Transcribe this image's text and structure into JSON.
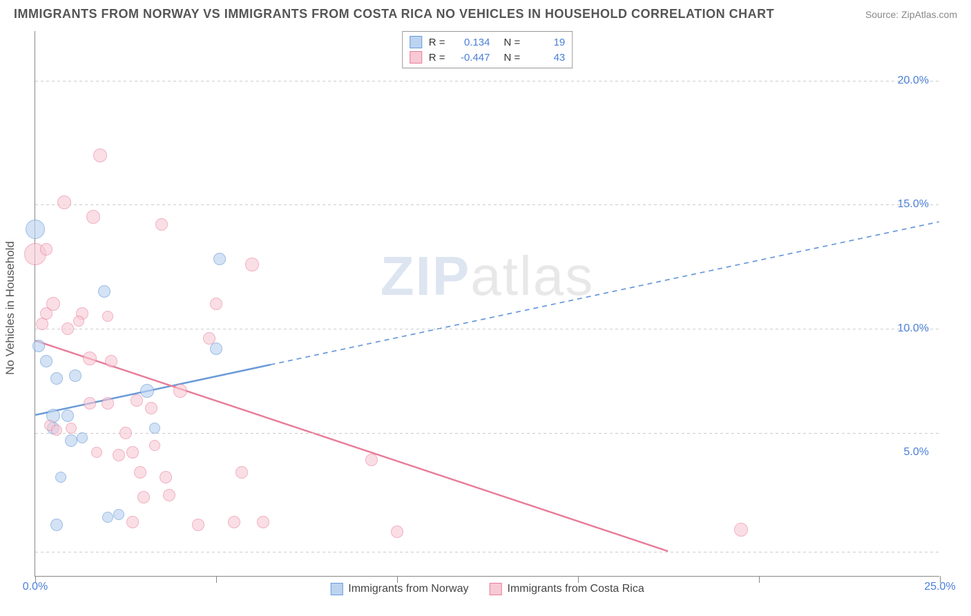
{
  "title": "IMMIGRANTS FROM NORWAY VS IMMIGRANTS FROM COSTA RICA NO VEHICLES IN HOUSEHOLD CORRELATION CHART",
  "source": "Source: ZipAtlas.com",
  "ylabel": "No Vehicles in Household",
  "watermark_zip": "ZIP",
  "watermark_atlas": "atlas",
  "chart": {
    "type": "scatter-correlation",
    "xlim": [
      0,
      25
    ],
    "ylim": [
      0,
      22
    ],
    "x_ticks": [
      0,
      5,
      10,
      15,
      20,
      25
    ],
    "x_tick_labels": [
      "0.0%",
      "",
      "",
      "",
      "",
      "25.0%"
    ],
    "y_ticks": [
      5,
      10,
      15,
      20
    ],
    "y_tick_labels": [
      "5.0%",
      "10.0%",
      "15.0%",
      "20.0%"
    ],
    "grid_y": [
      1,
      5.8,
      10,
      15,
      20
    ],
    "plot_bg": "#ffffff",
    "grid_color": "#cccccc",
    "axis_color": "#888888",
    "tick_label_color": "#4a7fd8",
    "series": [
      {
        "name": "Immigrants from Norway",
        "fill": "#bcd4f0",
        "stroke": "#6a9ad8",
        "fill_opacity": 0.65,
        "R": "0.134",
        "N": "19",
        "trend": {
          "x1": 0,
          "y1": 6.5,
          "x2": 25,
          "y2": 14.3,
          "solid_until_x": 6.5,
          "stroke_width": 2.5
        },
        "points": [
          {
            "x": 0.0,
            "y": 14.0,
            "r": 14
          },
          {
            "x": 0.1,
            "y": 9.3,
            "r": 9
          },
          {
            "x": 0.3,
            "y": 8.7,
            "r": 9
          },
          {
            "x": 0.5,
            "y": 6.5,
            "r": 10
          },
          {
            "x": 0.6,
            "y": 8.0,
            "r": 9
          },
          {
            "x": 0.9,
            "y": 6.5,
            "r": 9
          },
          {
            "x": 0.7,
            "y": 4.0,
            "r": 8
          },
          {
            "x": 1.0,
            "y": 5.5,
            "r": 9
          },
          {
            "x": 1.1,
            "y": 8.1,
            "r": 9
          },
          {
            "x": 1.9,
            "y": 11.5,
            "r": 9
          },
          {
            "x": 2.0,
            "y": 2.4,
            "r": 8
          },
          {
            "x": 2.3,
            "y": 2.5,
            "r": 8
          },
          {
            "x": 0.6,
            "y": 2.1,
            "r": 9
          },
          {
            "x": 3.1,
            "y": 7.5,
            "r": 10
          },
          {
            "x": 3.3,
            "y": 6.0,
            "r": 8
          },
          {
            "x": 5.0,
            "y": 9.2,
            "r": 9
          },
          {
            "x": 5.1,
            "y": 12.8,
            "r": 9
          },
          {
            "x": 0.5,
            "y": 6.0,
            "r": 9
          },
          {
            "x": 1.3,
            "y": 5.6,
            "r": 8
          }
        ]
      },
      {
        "name": "Immigrants from Costa Rica",
        "fill": "#f7c9d4",
        "stroke": "#e87d9a",
        "fill_opacity": 0.6,
        "R": "-0.447",
        "N": "43",
        "trend": {
          "x1": 0,
          "y1": 9.5,
          "x2": 17.5,
          "y2": 1.0,
          "solid_until_x": 17.5,
          "stroke_width": 2.5
        },
        "points": [
          {
            "x": 0.0,
            "y": 13.0,
            "r": 16
          },
          {
            "x": 0.3,
            "y": 10.6,
            "r": 9
          },
          {
            "x": 0.2,
            "y": 10.2,
            "r": 9
          },
          {
            "x": 0.5,
            "y": 11.0,
            "r": 10
          },
          {
            "x": 0.8,
            "y": 15.1,
            "r": 10
          },
          {
            "x": 0.3,
            "y": 13.2,
            "r": 9
          },
          {
            "x": 1.3,
            "y": 10.6,
            "r": 9
          },
          {
            "x": 1.5,
            "y": 8.8,
            "r": 10
          },
          {
            "x": 1.6,
            "y": 14.5,
            "r": 10
          },
          {
            "x": 1.8,
            "y": 17.0,
            "r": 10
          },
          {
            "x": 1.5,
            "y": 7.0,
            "r": 9
          },
          {
            "x": 2.1,
            "y": 8.7,
            "r": 9
          },
          {
            "x": 2.0,
            "y": 7.0,
            "r": 9
          },
          {
            "x": 2.3,
            "y": 4.9,
            "r": 9
          },
          {
            "x": 2.5,
            "y": 5.8,
            "r": 9
          },
          {
            "x": 2.7,
            "y": 5.0,
            "r": 9
          },
          {
            "x": 2.8,
            "y": 7.1,
            "r": 9
          },
          {
            "x": 2.9,
            "y": 4.2,
            "r": 9
          },
          {
            "x": 3.0,
            "y": 3.2,
            "r": 9
          },
          {
            "x": 2.7,
            "y": 2.2,
            "r": 9
          },
          {
            "x": 3.2,
            "y": 6.8,
            "r": 9
          },
          {
            "x": 3.5,
            "y": 14.2,
            "r": 9
          },
          {
            "x": 3.6,
            "y": 4.0,
            "r": 9
          },
          {
            "x": 3.7,
            "y": 3.3,
            "r": 9
          },
          {
            "x": 4.0,
            "y": 7.5,
            "r": 10
          },
          {
            "x": 4.5,
            "y": 2.1,
            "r": 9
          },
          {
            "x": 4.8,
            "y": 9.6,
            "r": 9
          },
          {
            "x": 5.0,
            "y": 11.0,
            "r": 9
          },
          {
            "x": 5.5,
            "y": 2.2,
            "r": 9
          },
          {
            "x": 5.7,
            "y": 4.2,
            "r": 9
          },
          {
            "x": 6.0,
            "y": 12.6,
            "r": 10
          },
          {
            "x": 6.3,
            "y": 2.2,
            "r": 9
          },
          {
            "x": 9.3,
            "y": 4.7,
            "r": 9
          },
          {
            "x": 10.0,
            "y": 1.8,
            "r": 9
          },
          {
            "x": 19.5,
            "y": 1.9,
            "r": 10
          },
          {
            "x": 1.0,
            "y": 6.0,
            "r": 8
          },
          {
            "x": 0.4,
            "y": 6.1,
            "r": 8
          },
          {
            "x": 0.6,
            "y": 5.9,
            "r": 8
          },
          {
            "x": 0.9,
            "y": 10.0,
            "r": 9
          },
          {
            "x": 1.2,
            "y": 10.3,
            "r": 8
          },
          {
            "x": 2.0,
            "y": 10.5,
            "r": 8
          },
          {
            "x": 3.3,
            "y": 5.3,
            "r": 8
          },
          {
            "x": 1.7,
            "y": 5.0,
            "r": 8
          }
        ]
      }
    ],
    "legend_bottom": [
      {
        "label": "Immigrants from Norway",
        "series": 0
      },
      {
        "label": "Immigrants from Costa Rica",
        "series": 1
      }
    ],
    "legend_top": [
      {
        "series": 0,
        "r_label": "R =",
        "n_label": "N ="
      },
      {
        "series": 1,
        "r_label": "R =",
        "n_label": "N ="
      }
    ]
  }
}
